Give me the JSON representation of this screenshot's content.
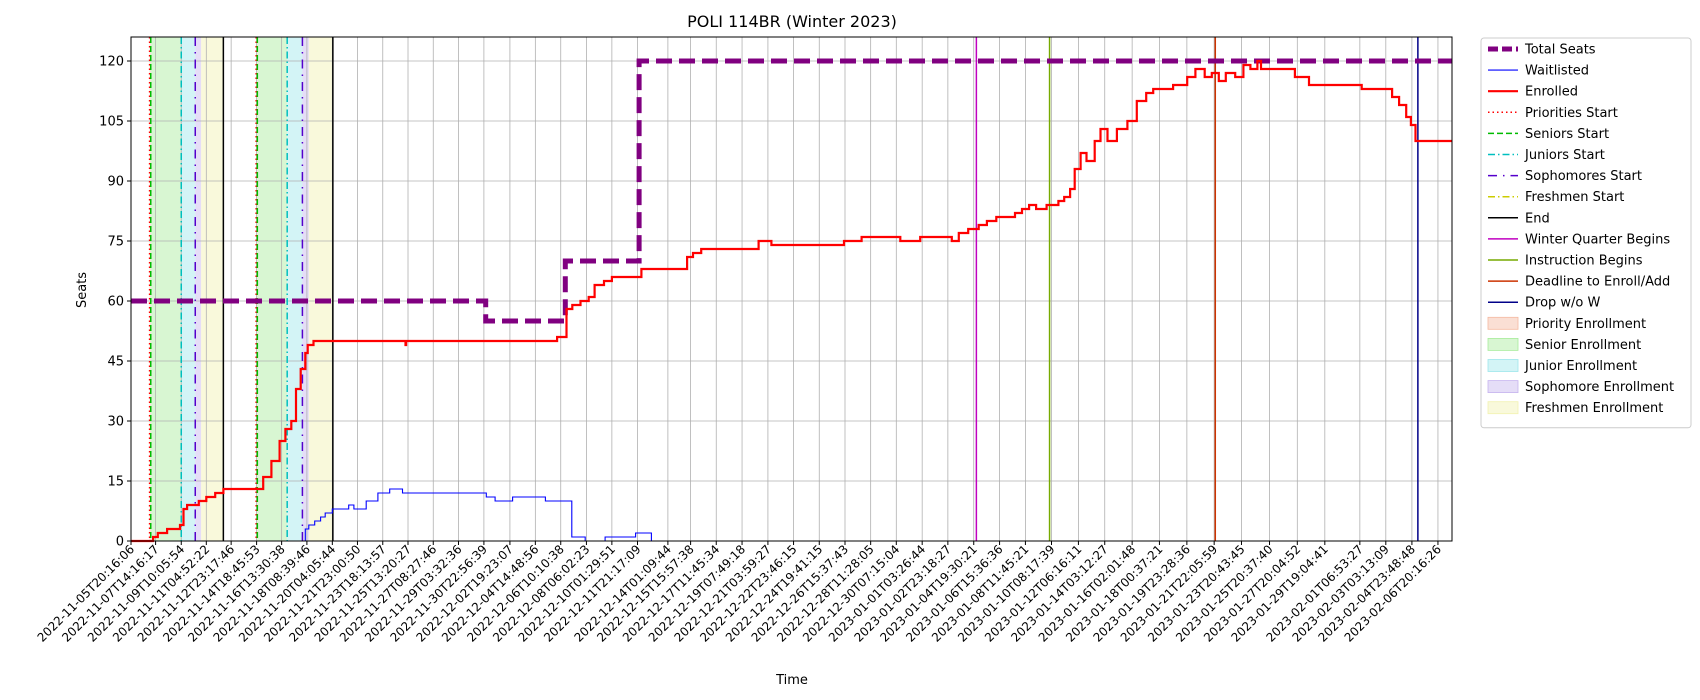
{
  "chart_data": {
    "type": "line",
    "title": "POLI 114BR (Winter 2023)",
    "xlabel": "Time",
    "ylabel": "Seats",
    "ylim": [
      0,
      126
    ],
    "yticks": [
      0,
      15,
      30,
      45,
      60,
      75,
      90,
      105,
      120
    ],
    "x_start": "2022-11-05T20:16:06",
    "x_end": "2023-02-07T20:16:26",
    "grid": true,
    "legend_position": "outside-right",
    "xticks": [
      "2022-11-05T20:16:06",
      "2022-11-07T14:16:17",
      "2022-11-09T10:05:54",
      "2022-11-11T04:52:22",
      "2022-11-12T23:17:46",
      "2022-11-14T18:45:53",
      "2022-11-16T13:30:38",
      "2022-11-18T08:39:46",
      "2022-11-20T04:05:44",
      "2022-11-21T23:00:50",
      "2022-11-23T18:13:57",
      "2022-11-25T13:20:27",
      "2022-11-27T08:27:46",
      "2022-11-29T03:32:36",
      "2022-11-30T22:56:39",
      "2022-12-02T19:23:07",
      "2022-12-04T14:48:56",
      "2022-12-06T10:10:38",
      "2022-12-08T06:02:23",
      "2022-12-10T01:29:51",
      "2022-12-11T21:17:09",
      "2022-12-14T01:09:44",
      "2022-12-15T15:57:38",
      "2022-12-17T11:45:34",
      "2022-12-19T07:49:18",
      "2022-12-21T03:59:27",
      "2022-12-22T23:46:15",
      "2022-12-24T19:41:15",
      "2022-12-26T15:37:43",
      "2022-12-28T11:28:05",
      "2022-12-30T07:15:04",
      "2023-01-01T03:26:44",
      "2023-01-02T23:18:27",
      "2023-01-04T19:30:21",
      "2023-01-06T15:36:36",
      "2023-01-08T11:45:21",
      "2023-01-10T08:17:39",
      "2023-01-12T06:16:11",
      "2023-01-14T03:12:27",
      "2023-01-16T02:01:48",
      "2023-01-18T00:37:21",
      "2023-01-19T23:28:36",
      "2023-01-21T22:05:59",
      "2023-01-23T20:43:45",
      "2023-01-25T20:37:40",
      "2023-01-27T20:04:52",
      "2023-01-29T19:04:41",
      "2023-02-01T06:53:27",
      "2023-02-03T03:13:09",
      "2023-02-04T23:48:48",
      "2023-02-06T20:16:26"
    ],
    "series": [
      {
        "name": "Total Seats",
        "color": "#800080",
        "style": "dashed-thick",
        "points": [
          [
            "2022-11-05T20:16:06",
            60
          ],
          [
            "2022-11-30T22:56:39",
            60
          ],
          [
            "2022-12-01T02:00:00",
            55
          ],
          [
            "2022-12-06T16:00:00",
            55
          ],
          [
            "2022-12-06T18:00:00",
            70
          ],
          [
            "2022-12-11T21:17:09",
            70
          ],
          [
            "2022-12-12T00:00:00",
            120
          ],
          [
            "2023-02-07T20:16:26",
            120
          ]
        ]
      },
      {
        "name": "Waitlisted",
        "color": "#0000ff",
        "style": "solid-thin",
        "points": [
          [
            "2022-11-05T20:16:06",
            0
          ],
          [
            "2022-11-18T05:00:00",
            0
          ],
          [
            "2022-11-18T06:00:00",
            3
          ],
          [
            "2022-11-18T12:00:00",
            4
          ],
          [
            "2022-11-18T22:00:00",
            5
          ],
          [
            "2022-11-19T08:00:00",
            6
          ],
          [
            "2022-11-19T16:00:00",
            7
          ],
          [
            "2022-11-20T04:05:44",
            8
          ],
          [
            "2022-11-20T23:00:00",
            8
          ],
          [
            "2022-11-21T08:00:00",
            9
          ],
          [
            "2022-11-21T17:00:00",
            8
          ],
          [
            "2022-11-22T14:00:00",
            10
          ],
          [
            "2022-11-23T10:00:00",
            12
          ],
          [
            "2022-11-24T06:00:00",
            13
          ],
          [
            "2022-11-25T04:00:00",
            12
          ],
          [
            "2022-11-30T21:00:00",
            12
          ],
          [
            "2022-12-01T03:00:00",
            11
          ],
          [
            "2022-12-01T18:00:00",
            10
          ],
          [
            "2022-12-03T00:00:00",
            11
          ],
          [
            "2022-12-05T08:00:00",
            10
          ],
          [
            "2022-12-07T03:00:00",
            10
          ],
          [
            "2022-12-07T05:00:00",
            1
          ],
          [
            "2022-12-08T00:00:00",
            1
          ],
          [
            "2022-12-08T04:00:00",
            0
          ],
          [
            "2022-12-09T10:00:00",
            0
          ],
          [
            "2022-12-09T14:00:00",
            1
          ],
          [
            "2022-12-11T14:00:00",
            1
          ],
          [
            "2022-12-11T18:00:00",
            2
          ],
          [
            "2022-12-12T18:00:00",
            2
          ],
          [
            "2022-12-12T21:00:00",
            0
          ],
          [
            "2023-02-07T20:16:26",
            0
          ]
        ]
      },
      {
        "name": "Enrolled",
        "color": "#ff0000",
        "style": "solid-thick",
        "points": [
          [
            "2022-11-05T20:16:06",
            0
          ],
          [
            "2022-11-07T06:00:00",
            0
          ],
          [
            "2022-11-07T10:00:00",
            1
          ],
          [
            "2022-11-07T18:00:00",
            2
          ],
          [
            "2022-11-08T10:00:00",
            3
          ],
          [
            "2022-11-09T08:00:00",
            4
          ],
          [
            "2022-11-09T14:00:00",
            8
          ],
          [
            "2022-11-09T20:00:00",
            9
          ],
          [
            "2022-11-10T16:00:00",
            10
          ],
          [
            "2022-11-11T04:52:22",
            11
          ],
          [
            "2022-11-11T20:00:00",
            12
          ],
          [
            "2022-11-12T10:00:00",
            13
          ],
          [
            "2022-11-15T02:00:00",
            13
          ],
          [
            "2022-11-15T06:00:00",
            16
          ],
          [
            "2022-11-15T20:00:00",
            20
          ],
          [
            "2022-11-16T10:00:00",
            25
          ],
          [
            "2022-11-16T20:00:00",
            28
          ],
          [
            "2022-11-17T06:00:00",
            30
          ],
          [
            "2022-11-17T14:00:00",
            38
          ],
          [
            "2022-11-17T22:00:00",
            43
          ],
          [
            "2022-11-18T06:00:00",
            47
          ],
          [
            "2022-11-18T10:00:00",
            49
          ],
          [
            "2022-11-18T20:00:00",
            50
          ],
          [
            "2022-11-25T08:00:00",
            50
          ],
          [
            "2022-11-25T09:00:00",
            49
          ],
          [
            "2022-11-25T10:00:00",
            50
          ],
          [
            "2022-12-06T00:00:00",
            50
          ],
          [
            "2022-12-06T04:00:00",
            51
          ],
          [
            "2022-12-06T18:00:00",
            51
          ],
          [
            "2022-12-06T20:00:00",
            58
          ],
          [
            "2022-12-07T06:00:00",
            59
          ],
          [
            "2022-12-07T20:00:00",
            60
          ],
          [
            "2022-12-08T10:00:00",
            61
          ],
          [
            "2022-12-08T20:00:00",
            64
          ],
          [
            "2022-12-09T12:00:00",
            65
          ],
          [
            "2022-12-10T01:29:51",
            66
          ],
          [
            "2022-12-12T00:00:00",
            66
          ],
          [
            "2022-12-12T04:00:00",
            68
          ],
          [
            "2022-12-15T00:00:00",
            68
          ],
          [
            "2022-12-15T10:00:00",
            71
          ],
          [
            "2022-12-15T20:00:00",
            72
          ],
          [
            "2022-12-16T10:00:00",
            73
          ],
          [
            "2022-12-20T00:00:00",
            73
          ],
          [
            "2022-12-20T12:00:00",
            75
          ],
          [
            "2022-12-21T10:00:00",
            74
          ],
          [
            "2022-12-26T10:00:00",
            74
          ],
          [
            "2022-12-26T14:00:00",
            75
          ],
          [
            "2022-12-27T20:00:00",
            76
          ],
          [
            "2022-12-30T10:00:00",
            76
          ],
          [
            "2022-12-30T14:00:00",
            75
          ],
          [
            "2023-01-01T00:00:00",
            76
          ],
          [
            "2023-01-03T00:00:00",
            76
          ],
          [
            "2023-01-03T06:00:00",
            75
          ],
          [
            "2023-01-03T18:00:00",
            77
          ],
          [
            "2023-01-04T10:00:00",
            78
          ],
          [
            "2023-01-05T04:00:00",
            79
          ],
          [
            "2023-01-05T18:00:00",
            80
          ],
          [
            "2023-01-06T10:00:00",
            81
          ],
          [
            "2023-01-07T18:00:00",
            82
          ],
          [
            "2023-01-08T06:00:00",
            83
          ],
          [
            "2023-01-08T18:00:00",
            84
          ],
          [
            "2023-01-09T06:00:00",
            83
          ],
          [
            "2023-01-10T00:00:00",
            84
          ],
          [
            "2023-01-10T20:00:00",
            85
          ],
          [
            "2023-01-11T06:00:00",
            86
          ],
          [
            "2023-01-11T16:00:00",
            88
          ],
          [
            "2023-01-12T00:00:00",
            93
          ],
          [
            "2023-01-12T10:00:00",
            97
          ],
          [
            "2023-01-12T20:00:00",
            95
          ],
          [
            "2023-01-13T10:00:00",
            100
          ],
          [
            "2023-01-13T20:00:00",
            103
          ],
          [
            "2023-01-14T08:00:00",
            100
          ],
          [
            "2023-01-15T00:00:00",
            103
          ],
          [
            "2023-01-15T18:00:00",
            105
          ],
          [
            "2023-01-16T10:00:00",
            110
          ],
          [
            "2023-01-17T02:00:00",
            112
          ],
          [
            "2023-01-17T14:00:00",
            113
          ],
          [
            "2023-01-18T10:00:00",
            113
          ],
          [
            "2023-01-19T00:00:00",
            114
          ],
          [
            "2023-01-20T00:00:00",
            116
          ],
          [
            "2023-01-20T14:00:00",
            118
          ],
          [
            "2023-01-21T06:00:00",
            116
          ],
          [
            "2023-01-21T18:00:00",
            117
          ],
          [
            "2023-01-22T06:00:00",
            115
          ],
          [
            "2023-01-22T18:00:00",
            117
          ],
          [
            "2023-01-23T10:00:00",
            116
          ],
          [
            "2023-01-24T00:00:00",
            119
          ],
          [
            "2023-01-24T12:00:00",
            118
          ],
          [
            "2023-01-25T00:00:00",
            120
          ],
          [
            "2023-01-25T06:00:00",
            118
          ],
          [
            "2023-01-27T12:00:00",
            118
          ],
          [
            "2023-01-27T16:00:00",
            116
          ],
          [
            "2023-01-28T12:00:00",
            116
          ],
          [
            "2023-01-28T16:00:00",
            114
          ],
          [
            "2023-02-01T06:53:27",
            114
          ],
          [
            "2023-02-01T10:00:00",
            113
          ],
          [
            "2023-02-03T03:13:09",
            113
          ],
          [
            "2023-02-03T14:00:00",
            111
          ],
          [
            "2023-02-04T02:00:00",
            109
          ],
          [
            "2023-02-04T14:00:00",
            106
          ],
          [
            "2023-02-04T22:00:00",
            104
          ],
          [
            "2023-02-05T06:00:00",
            100
          ],
          [
            "2023-02-07T20:16:26",
            100
          ]
        ]
      }
    ],
    "vertical_lines": [
      {
        "name": "Priorities Start",
        "color": "#ff0000",
        "style": "dotted",
        "x": [
          "2022-11-07T04:00:00",
          "2022-11-14T18:00:00"
        ]
      },
      {
        "name": "Seniors Start",
        "color": "#00bb00",
        "style": "dashed",
        "x": [
          "2022-11-07T06:00:00",
          "2022-11-14T20:00:00"
        ]
      },
      {
        "name": "Juniors Start",
        "color": "#00bfbf",
        "style": "dashdot",
        "x": [
          "2022-11-09T10:05:54",
          "2022-11-16T23:00:00"
        ]
      },
      {
        "name": "Sophomores Start",
        "color": "#5500cc",
        "style": "dashdot-loose",
        "x": [
          "2022-11-10T10:00:00",
          "2022-11-18T01:00:00"
        ]
      },
      {
        "name": "Freshmen Start",
        "color": "#cccc00",
        "style": "dashdot",
        "x": []
      },
      {
        "name": "End",
        "color": "#000000",
        "style": "solid",
        "x": [
          "2022-11-12T10:00:00",
          "2022-11-20T05:00:00"
        ]
      },
      {
        "name": "Winter Quarter Begins",
        "color": "#c000c0",
        "style": "solid",
        "x": [
          "2023-01-05T00:00:00"
        ]
      },
      {
        "name": "Instruction Begins",
        "color": "#77aa00",
        "style": "solid",
        "x": [
          "2023-01-10T05:00:00"
        ]
      },
      {
        "name": "Deadline to Enroll/Add",
        "color": "#cc3300",
        "style": "solid",
        "x": [
          "2023-01-22T00:00:00"
        ]
      },
      {
        "name": "Drop w/o W",
        "color": "#000088",
        "style": "solid",
        "x": [
          "2023-02-05T10:00:00"
        ]
      }
    ],
    "shaded_periods": [
      {
        "name": "Priority Enrollment",
        "color": "#f4b8a0",
        "ranges": [
          [
            "2022-11-07T04:00:00",
            "2022-11-07T06:00:00"
          ],
          [
            "2022-11-14T18:00:00",
            "2022-11-14T20:00:00"
          ]
        ]
      },
      {
        "name": "Senior Enrollment",
        "color": "#a8ec9c",
        "ranges": [
          [
            "2022-11-07T06:00:00",
            "2022-11-09T10:05:54"
          ],
          [
            "2022-11-14T20:00:00",
            "2022-11-16T23:00:00"
          ]
        ]
      },
      {
        "name": "Junior Enrollment",
        "color": "#9ee6ec",
        "ranges": [
          [
            "2022-11-09T10:05:54",
            "2022-11-10T10:00:00"
          ],
          [
            "2022-11-16T23:00:00",
            "2022-11-18T01:00:00"
          ]
        ]
      },
      {
        "name": "Sophomore Enrollment",
        "color": "#c6b4ee",
        "ranges": [
          [
            "2022-11-10T10:00:00",
            "2022-11-10T20:00:00"
          ],
          [
            "2022-11-18T01:00:00",
            "2022-11-18T12:00:00"
          ]
        ]
      },
      {
        "name": "Freshmen Enrollment",
        "color": "#f2f2b0",
        "ranges": [
          [
            "2022-11-10T20:00:00",
            "2022-11-12T10:00:00"
          ],
          [
            "2022-11-18T12:00:00",
            "2022-11-20T05:00:00"
          ]
        ]
      }
    ],
    "legend": [
      {
        "label": "Total Seats",
        "kind": "line",
        "color": "#800080",
        "style": "dashed-thick"
      },
      {
        "label": "Waitlisted",
        "kind": "line",
        "color": "#0000ff",
        "style": "solid-thin"
      },
      {
        "label": "Enrolled",
        "kind": "line",
        "color": "#ff0000",
        "style": "solid-thick"
      },
      {
        "label": "Priorities Start",
        "kind": "line",
        "color": "#ff0000",
        "style": "dotted"
      },
      {
        "label": "Seniors Start",
        "kind": "line",
        "color": "#00bb00",
        "style": "dashed"
      },
      {
        "label": "Juniors Start",
        "kind": "line",
        "color": "#00bfbf",
        "style": "dashdot"
      },
      {
        "label": "Sophomores Start",
        "kind": "line",
        "color": "#5500cc",
        "style": "dashdot-loose"
      },
      {
        "label": "Freshmen Start",
        "kind": "line",
        "color": "#cccc00",
        "style": "dashdot"
      },
      {
        "label": "End",
        "kind": "line",
        "color": "#000000",
        "style": "solid"
      },
      {
        "label": "Winter Quarter Begins",
        "kind": "line",
        "color": "#c000c0",
        "style": "solid"
      },
      {
        "label": "Instruction Begins",
        "kind": "line",
        "color": "#77aa00",
        "style": "solid"
      },
      {
        "label": "Deadline to Enroll/Add",
        "kind": "line",
        "color": "#cc3300",
        "style": "solid"
      },
      {
        "label": "Drop w/o W",
        "kind": "line",
        "color": "#000088",
        "style": "solid"
      },
      {
        "label": "Priority Enrollment",
        "kind": "patch",
        "color": "#f4b8a0"
      },
      {
        "label": "Senior Enrollment",
        "kind": "patch",
        "color": "#a8ec9c"
      },
      {
        "label": "Junior Enrollment",
        "kind": "patch",
        "color": "#9ee6ec"
      },
      {
        "label": "Sophomore Enrollment",
        "kind": "patch",
        "color": "#c6b4ee"
      },
      {
        "label": "Freshmen Enrollment",
        "kind": "patch",
        "color": "#f2f2b0"
      }
    ]
  }
}
